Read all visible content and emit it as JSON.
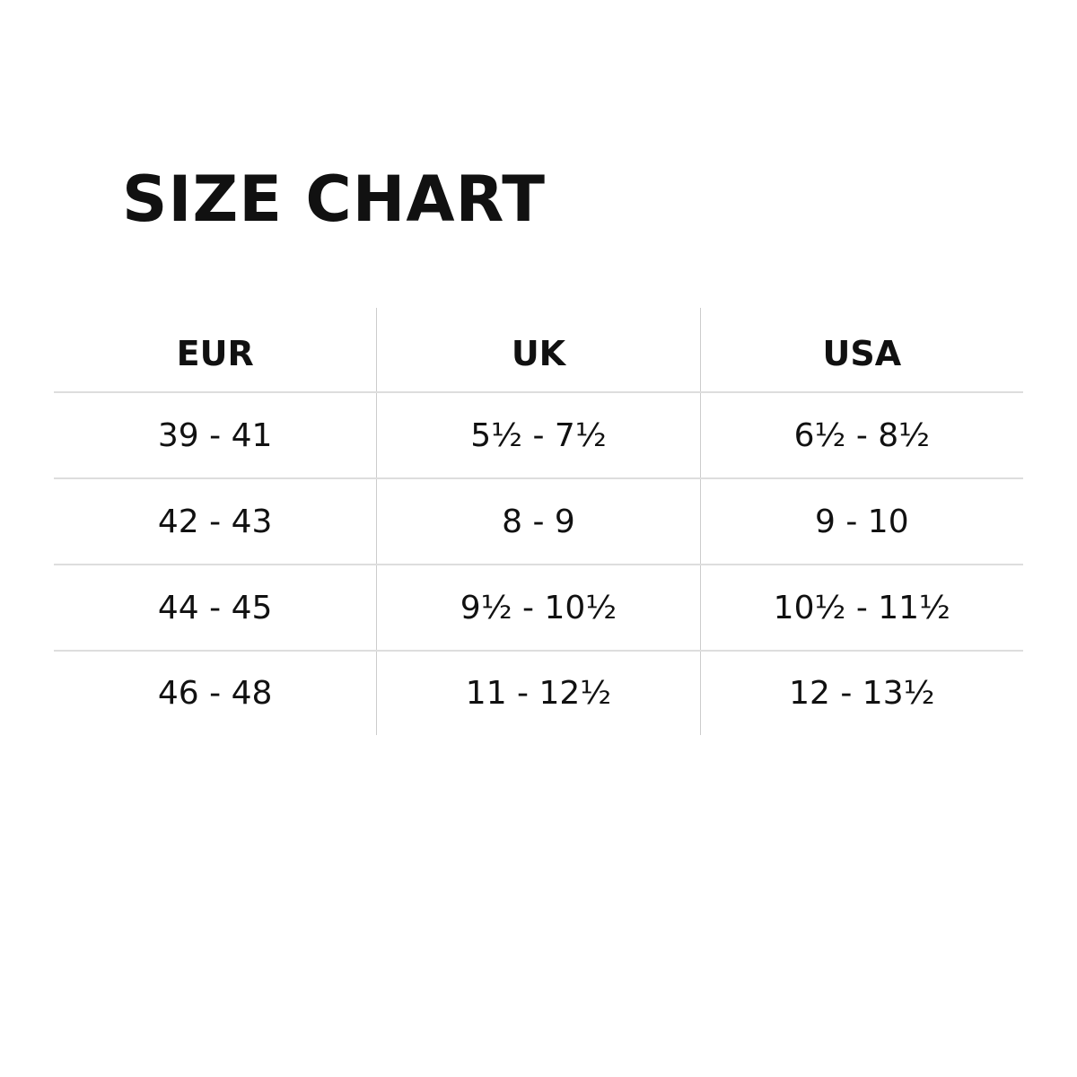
{
  "title": "SIZE CHART",
  "table": {
    "headers": [
      "EUR",
      "UK",
      "USA"
    ],
    "rows": [
      [
        "39 - 41",
        "5½ - 7½",
        "6½ - 8½"
      ],
      [
        "42 - 43",
        "8 - 9",
        "9 - 10"
      ],
      [
        "44 - 45",
        "9½ - 10½",
        "10½ - 11½"
      ],
      [
        "46 - 48",
        "11 - 12½",
        "12 - 13½"
      ]
    ]
  }
}
